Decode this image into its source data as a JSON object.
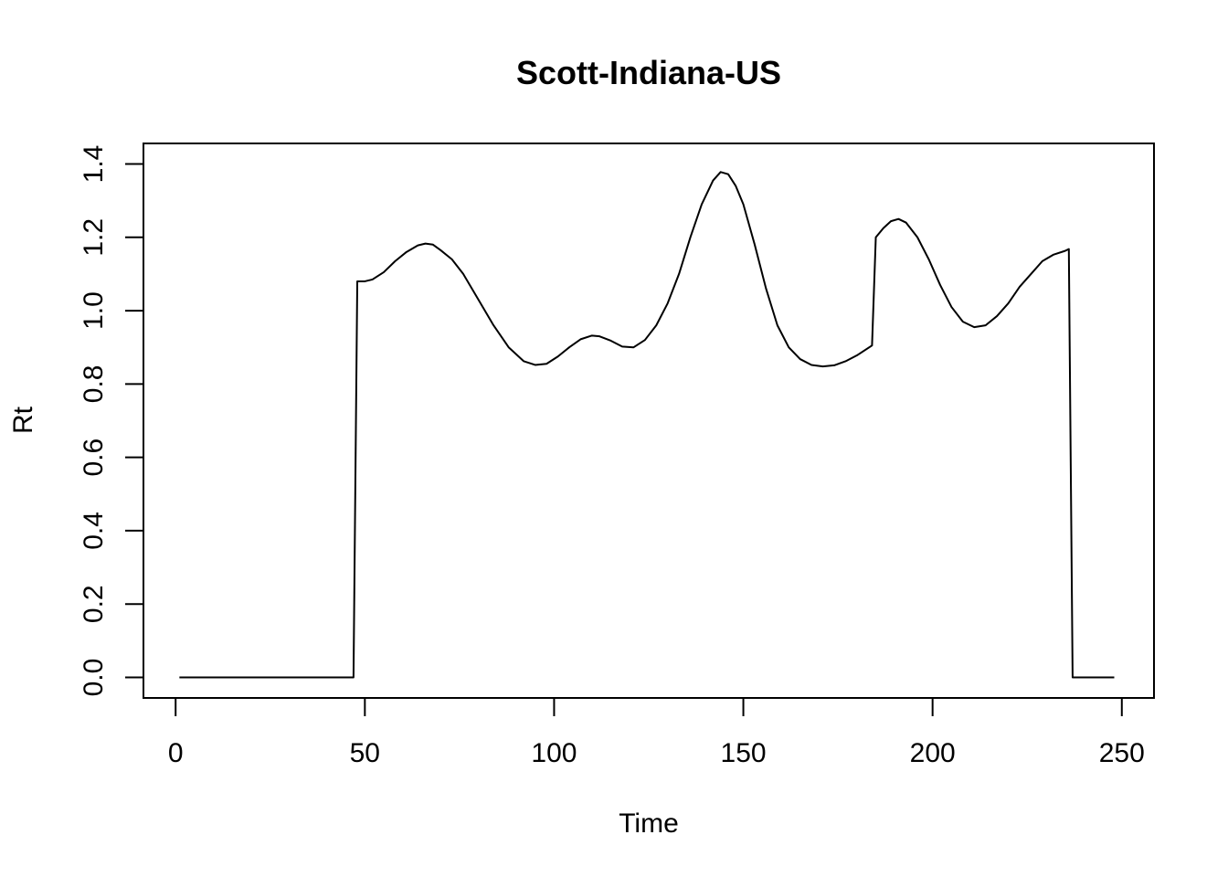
{
  "chart_data": {
    "type": "line",
    "title": "Scott-Indiana-US",
    "xlabel": "Time",
    "ylabel": "Rt",
    "xlim": [
      -8.5,
      258.5
    ],
    "ylim": [
      -0.056,
      1.456
    ],
    "xticks": [
      0,
      50,
      100,
      150,
      200,
      250
    ],
    "yticks": [
      0.0,
      0.2,
      0.4,
      0.6,
      0.8,
      1.0,
      1.2,
      1.4
    ],
    "xtick_labels": [
      "0",
      "50",
      "100",
      "150",
      "200",
      "250"
    ],
    "ytick_labels": [
      "0.0",
      "0.2",
      "0.4",
      "0.6",
      "0.8",
      "1.0",
      "1.2",
      "1.4"
    ],
    "grid": false,
    "legend": "none",
    "series": [
      {
        "x": [
          1,
          47,
          48,
          50,
          52,
          55,
          58,
          61,
          64,
          66,
          68,
          70,
          73,
          76,
          80,
          84,
          88,
          92,
          95,
          98,
          101,
          104,
          107,
          110,
          112,
          115,
          118,
          121,
          124,
          127,
          130,
          133,
          136,
          139,
          142,
          144,
          146,
          148,
          150,
          153,
          156,
          159,
          162,
          165,
          168,
          171,
          174,
          177,
          180,
          184,
          185,
          187,
          189,
          191,
          193,
          196,
          199,
          202,
          205,
          208,
          211,
          214,
          217,
          220,
          223,
          226,
          229,
          232,
          235,
          236,
          237,
          248
        ],
        "y": [
          0,
          0,
          1.08,
          1.08,
          1.085,
          1.105,
          1.135,
          1.16,
          1.178,
          1.183,
          1.18,
          1.165,
          1.14,
          1.1,
          1.03,
          0.96,
          0.9,
          0.862,
          0.852,
          0.855,
          0.875,
          0.9,
          0.922,
          0.932,
          0.93,
          0.918,
          0.902,
          0.9,
          0.92,
          0.96,
          1.02,
          1.1,
          1.2,
          1.29,
          1.355,
          1.378,
          1.372,
          1.34,
          1.29,
          1.18,
          1.06,
          0.96,
          0.9,
          0.868,
          0.852,
          0.848,
          0.851,
          0.862,
          0.878,
          0.905,
          1.2,
          1.225,
          1.244,
          1.25,
          1.24,
          1.2,
          1.14,
          1.07,
          1.01,
          0.97,
          0.955,
          0.96,
          0.985,
          1.02,
          1.065,
          1.1,
          1.135,
          1.153,
          1.163,
          1.168,
          0,
          0
        ]
      }
    ]
  }
}
